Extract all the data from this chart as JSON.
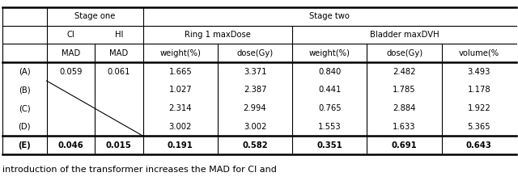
{
  "footer_text": "introduction of the transformer increases the MAD for CI and",
  "header_row1_labels": [
    "Stage one",
    "Stage two"
  ],
  "header_row2_labels": [
    "CI",
    "HI",
    "Ring 1 maxDose",
    "Bladder maxDVH"
  ],
  "header_row3_labels": [
    "MAD",
    "MAD",
    "weight(%)",
    "dose(Gy)",
    "weight(%)",
    "dose(Gy)",
    "volume(%"
  ],
  "rows": [
    [
      "(A)",
      "0.059",
      "0.061",
      "1.665",
      "3.371",
      "0.840",
      "2.482",
      "3.493"
    ],
    [
      "(B)",
      "",
      "",
      "1.027",
      "2.387",
      "0.441",
      "1.785",
      "1.178"
    ],
    [
      "(C)",
      "",
      "",
      "2.314",
      "2.994",
      "0.765",
      "2.884",
      "1.922"
    ],
    [
      "(D)",
      "",
      "",
      "3.002",
      "3.002",
      "1.553",
      "1.633",
      "5.365"
    ],
    [
      "(E)",
      "0.046",
      "0.015",
      "0.191",
      "0.582",
      "0.351",
      "0.691",
      "0.643"
    ]
  ],
  "bold_row": 4,
  "bg_color": "#ffffff",
  "text_color": "#000000",
  "font_size": 7.2,
  "footer_font_size": 8.0
}
